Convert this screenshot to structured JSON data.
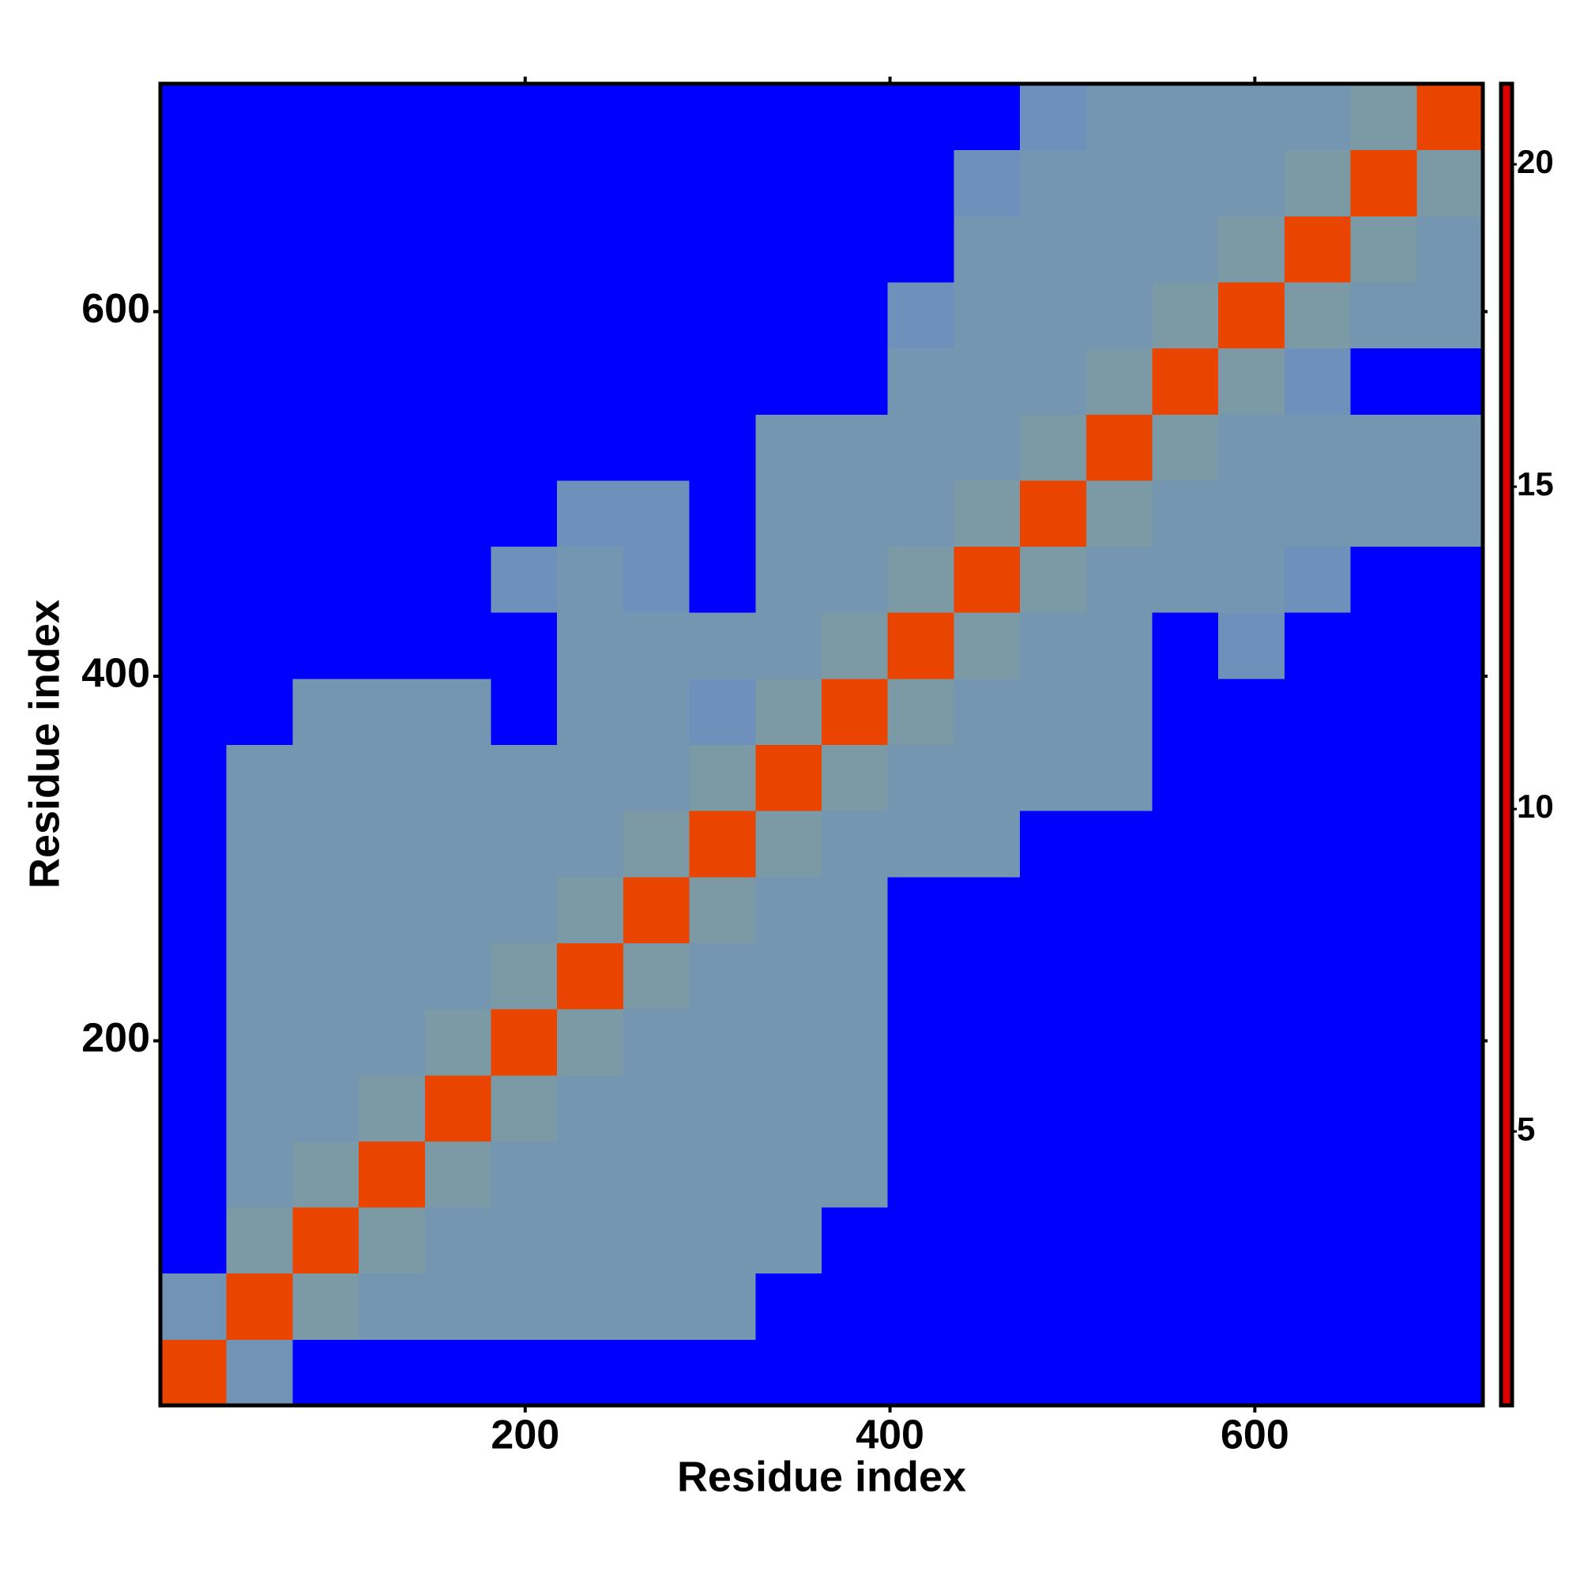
{
  "chart_data": {
    "type": "heatmap",
    "x_label": "Residue index",
    "y_label": "Residue index",
    "xlim": [
      0,
      725
    ],
    "ylim": [
      0,
      725
    ],
    "xticks": [
      200,
      400,
      600
    ],
    "yticks": [
      200,
      400,
      600
    ],
    "bins": [
      0,
      36.25,
      72.5,
      108.75,
      145,
      181.25,
      217.5,
      253.75,
      290,
      326.25,
      362.5,
      398.75,
      435,
      471.25,
      507.5,
      543.75,
      580,
      616.25,
      652.5,
      688.75,
      725
    ],
    "values": [
      [
        4,
        19,
        22,
        22,
        22,
        22,
        22,
        22,
        22,
        22,
        22,
        22,
        22,
        22,
        22,
        22,
        22,
        22,
        22,
        22
      ],
      [
        19,
        4,
        16,
        18,
        18,
        18,
        18,
        18,
        18,
        22,
        22,
        22,
        22,
        22,
        22,
        22,
        22,
        22,
        22,
        22
      ],
      [
        22,
        16,
        4,
        16,
        18,
        18,
        18,
        18,
        18,
        18,
        22,
        22,
        22,
        22,
        22,
        22,
        22,
        22,
        22,
        22
      ],
      [
        22,
        18,
        16,
        4,
        16,
        18,
        18,
        18,
        18,
        18,
        18,
        22,
        22,
        22,
        22,
        22,
        22,
        22,
        22,
        22
      ],
      [
        22,
        18,
        18,
        16,
        4,
        16,
        18,
        18,
        18,
        18,
        18,
        22,
        22,
        22,
        22,
        22,
        22,
        22,
        22,
        22
      ],
      [
        22,
        18,
        18,
        18,
        16,
        4,
        16,
        18,
        18,
        18,
        18,
        22,
        22,
        22,
        22,
        22,
        22,
        22,
        22,
        22
      ],
      [
        22,
        18,
        18,
        18,
        18,
        16,
        4,
        16,
        18,
        18,
        18,
        22,
        22,
        22,
        22,
        22,
        22,
        22,
        22,
        22
      ],
      [
        22,
        18,
        18,
        18,
        18,
        18,
        16,
        4,
        16,
        18,
        18,
        22,
        22,
        22,
        22,
        22,
        22,
        22,
        22,
        22
      ],
      [
        22,
        18,
        18,
        18,
        18,
        18,
        18,
        16,
        4,
        16,
        18,
        18,
        18,
        22,
        22,
        22,
        22,
        22,
        22,
        22
      ],
      [
        22,
        18,
        18,
        18,
        18,
        18,
        18,
        18,
        16,
        4,
        16,
        18,
        18,
        18,
        18,
        22,
        22,
        22,
        22,
        22
      ],
      [
        22,
        22,
        18,
        18,
        18,
        22,
        18,
        18,
        20,
        16,
        4,
        16,
        18,
        18,
        18,
        22,
        22,
        22,
        22,
        22
      ],
      [
        22,
        22,
        22,
        22,
        22,
        22,
        18,
        18,
        18,
        18,
        16,
        4,
        16,
        18,
        18,
        22,
        20,
        22,
        22,
        22
      ],
      [
        22,
        22,
        22,
        22,
        22,
        20,
        18,
        20,
        22,
        18,
        18,
        16,
        4,
        16,
        18,
        18,
        18,
        20,
        22,
        22
      ],
      [
        22,
        22,
        22,
        22,
        22,
        22,
        20,
        20,
        22,
        18,
        18,
        18,
        16,
        4,
        16,
        18,
        18,
        18,
        18,
        18
      ],
      [
        22,
        22,
        22,
        22,
        22,
        22,
        22,
        22,
        22,
        18,
        18,
        18,
        18,
        16,
        4,
        16,
        18,
        18,
        18,
        18
      ],
      [
        22,
        22,
        22,
        22,
        22,
        22,
        22,
        22,
        22,
        22,
        22,
        18,
        18,
        18,
        16,
        4,
        16,
        20,
        22,
        22
      ],
      [
        22,
        22,
        22,
        22,
        22,
        22,
        22,
        22,
        22,
        22,
        22,
        20,
        18,
        18,
        18,
        16,
        4,
        16,
        18,
        18
      ],
      [
        22,
        22,
        22,
        22,
        22,
        22,
        22,
        22,
        22,
        22,
        22,
        22,
        18,
        18,
        18,
        18,
        16,
        4,
        16,
        18
      ],
      [
        22,
        22,
        22,
        22,
        22,
        22,
        22,
        22,
        22,
        22,
        22,
        22,
        20,
        18,
        18,
        18,
        18,
        16,
        4,
        16
      ],
      [
        22,
        22,
        22,
        22,
        22,
        22,
        22,
        22,
        22,
        22,
        22,
        22,
        22,
        20,
        18,
        18,
        18,
        18,
        16,
        4
      ]
    ],
    "colorbar": {
      "lim": [
        0.75,
        21.25
      ],
      "ticks": [
        5,
        10,
        15,
        20
      ],
      "stops": [
        {
          "value": 0.75,
          "color": "#e00000"
        },
        {
          "value": 8.4,
          "color": "#f5a000"
        },
        {
          "value": 8.5,
          "color": "#8aa88a"
        },
        {
          "value": 15,
          "color": "#7f9ca0"
        },
        {
          "value": 21,
          "color": "#6a8fc0"
        },
        {
          "value": 21.25,
          "color": "#0000ff"
        }
      ]
    }
  }
}
